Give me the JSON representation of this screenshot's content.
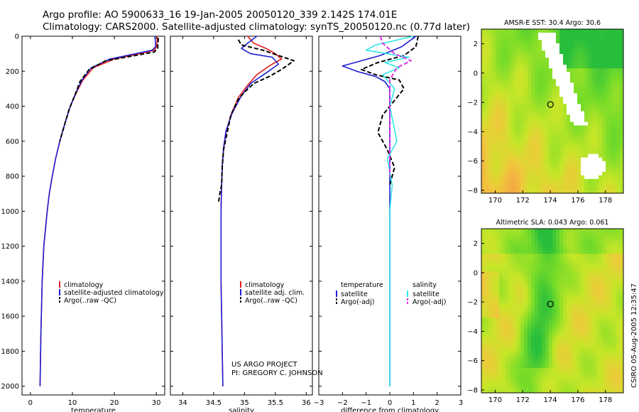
{
  "header": {
    "line1": "Argo profile: AO 5900633_16 19-Jan-2005 20050120_339 2.142S 174.01E",
    "line2": "Climatology: CARS2000. Satellite-adjusted climatology: synTS_20050120.nc (0.77d later)"
  },
  "credit": {
    "line1": "US ARGO PROJECT",
    "line2": "PI: GREGORY C. JOHNSON"
  },
  "side_label": "CSIRO 05-Aug-2005 12:35:47",
  "colors": {
    "red": "#e41a1c",
    "blue": "#1f1fd6",
    "black": "#000000",
    "cyan": "#2ee6e6",
    "magenta": "#e632e6"
  },
  "chart_data": [
    {
      "id": "temp",
      "type": "line",
      "xlabel": "temperature",
      "ylabel": "",
      "xlim": [
        -2,
        32
      ],
      "ylim": [
        0,
        2050
      ],
      "xticks": [
        0,
        10,
        20,
        30
      ],
      "yticks": [
        0,
        200,
        400,
        600,
        800,
        1000,
        1200,
        1400,
        1600,
        1800,
        2000
      ],
      "legend": {
        "position": "lower-right",
        "entries": [
          "climatology",
          "satellite-adjusted climatology",
          "Argo(..raw -QC)"
        ]
      },
      "series": [
        {
          "name": "climatology",
          "color": "red",
          "dash": false,
          "x": [
            30.2,
            30.2,
            30,
            29.5,
            26,
            20,
            15,
            12.5,
            11,
            9.5,
            8.2,
            7,
            6,
            5.2,
            4.5,
            4,
            3.6,
            3.2,
            2.8,
            2.5,
            2.3
          ],
          "y": [
            0,
            30,
            60,
            80,
            100,
            130,
            180,
            250,
            320,
            400,
            500,
            600,
            700,
            800,
            900,
            1000,
            1100,
            1200,
            1400,
            1700,
            2000
          ]
        },
        {
          "name": "satellite",
          "color": "blue",
          "dash": false,
          "x": [
            29.6,
            29.8,
            29.8,
            29,
            25,
            19,
            14.5,
            12.3,
            10.9,
            9.5,
            8.2,
            7,
            6,
            5.2,
            4.5,
            4,
            3.6,
            3.2,
            2.8,
            2.5,
            2.3
          ],
          "y": [
            0,
            30,
            60,
            80,
            100,
            130,
            180,
            250,
            320,
            400,
            500,
            600,
            700,
            800,
            900,
            1000,
            1100,
            1200,
            1400,
            1700,
            2000
          ]
        },
        {
          "name": "argo",
          "color": "black",
          "dash": true,
          "x": [
            30.5,
            30.4,
            30.3,
            29.5,
            25,
            18,
            14,
            11.8,
            10.7,
            9.2,
            8.2,
            7
          ],
          "y": [
            10,
            40,
            70,
            90,
            110,
            140,
            190,
            260,
            330,
            420,
            500,
            600
          ]
        }
      ]
    },
    {
      "id": "sal",
      "type": "line",
      "xlabel": "salinity",
      "ylabel": "",
      "xlim": [
        33.8,
        36.1
      ],
      "ylim": [
        0,
        2050
      ],
      "xticks": [
        34,
        34.5,
        35,
        35.5,
        36
      ],
      "yticks": [],
      "legend": {
        "position": "lower-right",
        "entries": [
          "climatology",
          "satellite adj. clim.",
          "Argo(..raw -QC)"
        ]
      },
      "series": [
        {
          "name": "climatology",
          "color": "red",
          "dash": false,
          "x": [
            35.05,
            35.15,
            35.35,
            35.5,
            35.6,
            35.4,
            35.2,
            35.05,
            34.9,
            34.78,
            34.7,
            34.66,
            34.64,
            34.63,
            34.62,
            34.62,
            34.62,
            34.63,
            34.64,
            34.65
          ],
          "y": [
            0,
            40,
            70,
            100,
            130,
            170,
            220,
            280,
            350,
            450,
            550,
            650,
            750,
            850,
            1000,
            1200,
            1400,
            1600,
            1800,
            2000
          ]
        },
        {
          "name": "satellite",
          "color": "blue",
          "dash": false,
          "x": [
            35.2,
            35.05,
            34.95,
            35.1,
            35.45,
            35.55,
            35.35,
            35.1,
            34.95,
            34.8,
            34.7,
            34.66,
            34.64,
            34.63,
            34.62,
            34.62,
            34.62,
            34.63,
            34.64,
            34.65
          ],
          "y": [
            0,
            40,
            70,
            100,
            120,
            160,
            210,
            270,
            340,
            440,
            540,
            640,
            740,
            840,
            1000,
            1200,
            1400,
            1600,
            1800,
            2000
          ]
        },
        {
          "name": "argo",
          "color": "black",
          "dash": true,
          "x": [
            34.9,
            34.95,
            35.3,
            35.8,
            35.6,
            35.4,
            35.15,
            35.0,
            34.9,
            34.78,
            34.72,
            34.66,
            34.64,
            34.63,
            34.6,
            34.58
          ],
          "y": [
            20,
            50,
            80,
            140,
            190,
            230,
            270,
            320,
            360,
            450,
            550,
            650,
            750,
            850,
            900,
            950
          ]
        }
      ]
    },
    {
      "id": "diff",
      "type": "line",
      "xlabel": "difference from climatology",
      "ylabel": "",
      "xlim": [
        -3,
        3
      ],
      "ylim": [
        0,
        2050
      ],
      "xticks": [
        -3,
        -2,
        -1,
        0,
        1,
        2,
        3
      ],
      "yticks": [],
      "legend": {
        "position": "lower",
        "entries": [
          "temperature",
          "satellite",
          "Argo(-adj)",
          "salinity",
          "satellite",
          "Argo(-adj)"
        ]
      },
      "series": [
        {
          "name": "temperature satellite",
          "color": "blue",
          "dash": false,
          "x": [
            1.1,
            0.5,
            -0.4,
            -1.2,
            -2.0,
            -1.4,
            -0.6,
            -0.2,
            0,
            0,
            0,
            0,
            0
          ],
          "y": [
            0,
            60,
            110,
            140,
            170,
            200,
            230,
            260,
            300,
            500,
            1000,
            1500,
            2000
          ]
        },
        {
          "name": "temperature Argo(-adj)",
          "color": "black",
          "dash": true,
          "x": [
            1.2,
            1.1,
            0.6,
            -0.5,
            -1.2,
            -0.6,
            0.4,
            0.6,
            0.3,
            -0.3,
            -0.5,
            -0.1,
            0.2,
            0.1,
            0
          ],
          "y": [
            0,
            60,
            110,
            150,
            190,
            220,
            250,
            300,
            350,
            450,
            550,
            650,
            750,
            800,
            850
          ]
        },
        {
          "name": "salinity satellite",
          "color": "cyan",
          "dash": false,
          "x": [
            1.0,
            -0.6,
            -1.0,
            0.8,
            -0.2,
            0.4,
            -0.3,
            0.2,
            0,
            0.3,
            -0.1,
            0.1,
            0,
            0
          ],
          "y": [
            0,
            50,
            80,
            120,
            150,
            180,
            220,
            300,
            400,
            600,
            700,
            850,
            1000,
            2000
          ]
        },
        {
          "name": "salinity Argo(-adj)",
          "color": "magenta",
          "dash": true,
          "x": [
            -0.4,
            -0.3,
            0.2,
            0.9,
            0.3,
            0,
            0,
            0,
            0
          ],
          "y": [
            0,
            40,
            100,
            140,
            180,
            250,
            400,
            600,
            800
          ]
        }
      ]
    },
    {
      "id": "sst",
      "type": "heatmap",
      "title": "AMSR-E SST: 30.4 Argo: 30.6",
      "xlim": [
        169,
        179.3
      ],
      "ylim": [
        -8.2,
        3
      ],
      "xticks": [
        170,
        172,
        174,
        176,
        178
      ],
      "yticks": [
        2,
        0,
        -2,
        -4,
        -6,
        -8
      ],
      "marker": {
        "lon": 174.01,
        "lat": -2.142
      }
    },
    {
      "id": "sla",
      "type": "heatmap",
      "title": "Altimetric SLA: 0.043 Argo: 0.061",
      "xlim": [
        169,
        179.3
      ],
      "ylim": [
        -8.2,
        3
      ],
      "xticks": [
        170,
        172,
        174,
        176,
        178
      ],
      "yticks": [
        2,
        0,
        -2,
        -4,
        -6,
        -8
      ],
      "marker": {
        "lon": 174.01,
        "lat": -2.142
      }
    }
  ]
}
